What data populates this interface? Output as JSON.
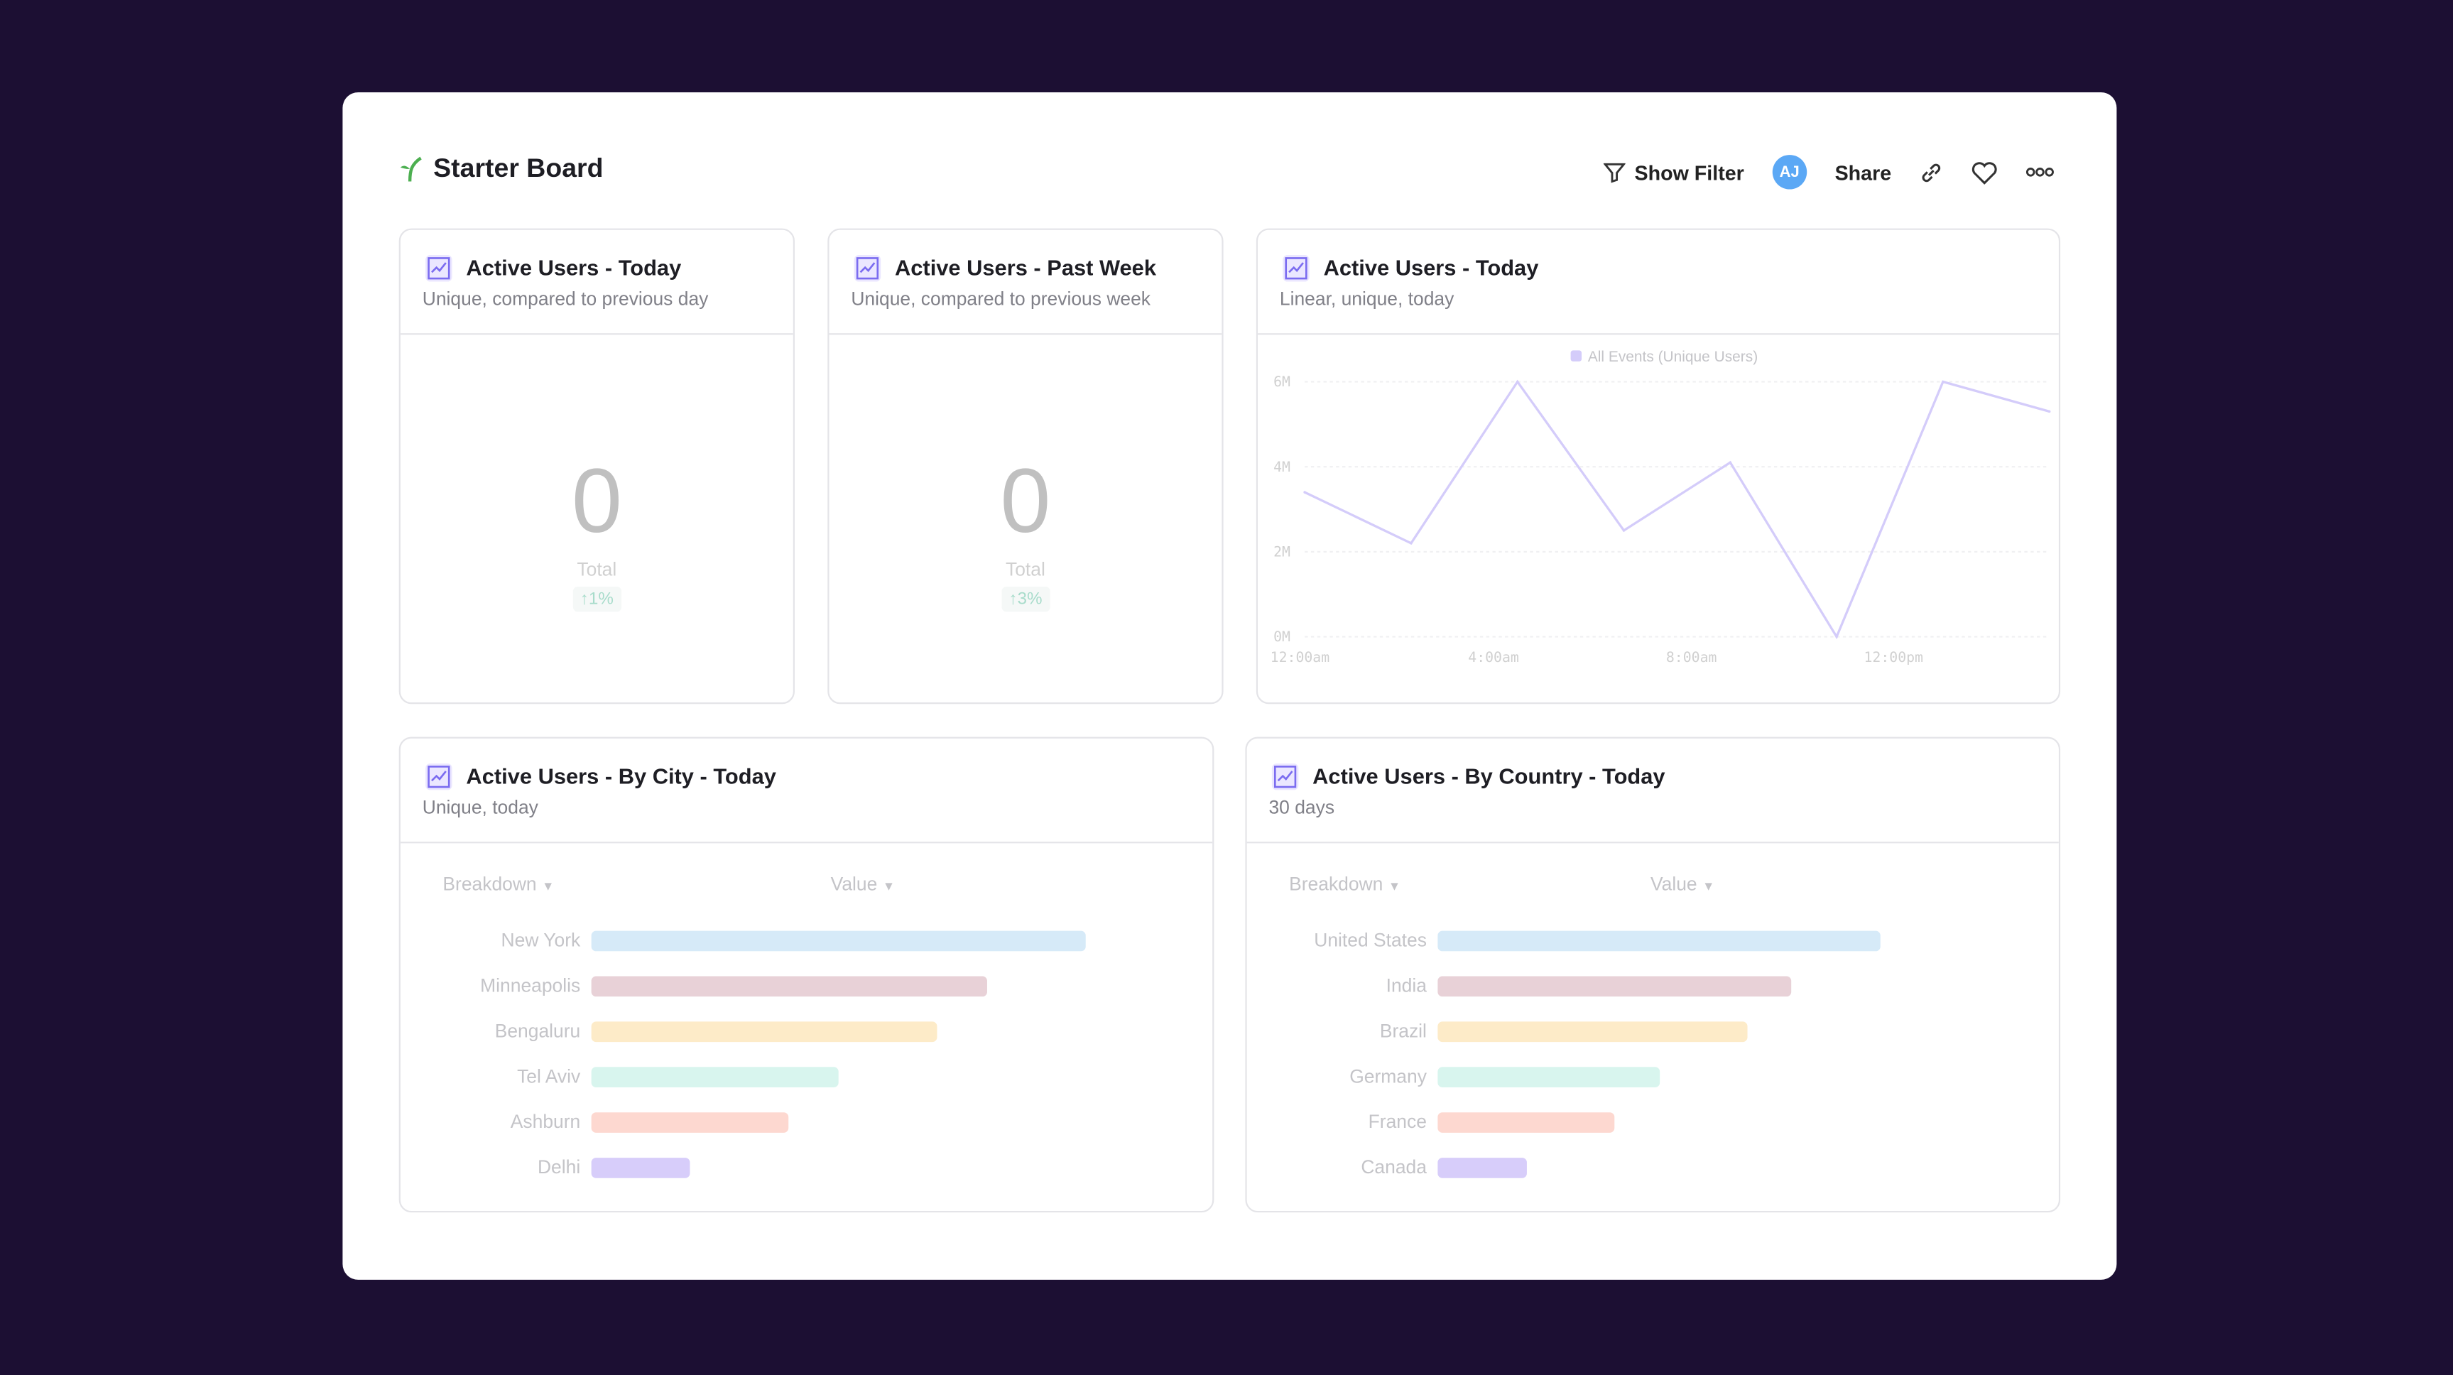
{
  "header": {
    "title": "Starter Board",
    "show_filter": "Show Filter",
    "avatar_initials": "AJ",
    "share": "Share"
  },
  "colors": {
    "background": "#1c0f33",
    "avatar": "#5ba8f5",
    "line": "#d4ccfa",
    "logo": "#4caf50"
  },
  "cards": [
    {
      "title": "Active Users - Today",
      "subtitle": "Unique, compared to previous day",
      "value": "0",
      "value_label": "Total",
      "delta": "↑1%"
    },
    {
      "title": "Active Users - Past Week",
      "subtitle": "Unique, compared to previous week",
      "value": "0",
      "value_label": "Total",
      "delta": "↑3%"
    },
    {
      "title": "Active Users - Today",
      "subtitle": "Linear, unique, today"
    },
    {
      "title": "Active Users - By City - Today",
      "subtitle": "Unique, today",
      "col_breakdown": "Breakdown",
      "col_value": "Value"
    },
    {
      "title": "Active Users - By Country - Today",
      "subtitle": "30 days",
      "col_breakdown": "Breakdown",
      "col_value": "Value"
    }
  ],
  "chart_data": [
    {
      "type": "line",
      "legend": "All Events (Unique Users)",
      "legend_position": "top",
      "x": [
        0,
        2,
        4,
        6,
        8,
        10,
        12,
        14
      ],
      "y": [
        3.4,
        2.2,
        6.0,
        2.5,
        4.1,
        0.0,
        6.0,
        5.3
      ],
      "x_ticks": [
        "12:00am",
        "4:00am",
        "8:00am",
        "12:00pm"
      ],
      "x_tick_values": [
        0,
        4,
        8,
        12
      ],
      "y_ticks": [
        "0M",
        "2M",
        "4M",
        "6M"
      ],
      "ylim": [
        0,
        6
      ],
      "grid": true
    },
    {
      "type": "bar",
      "orientation": "horizontal",
      "categories": [
        "New York",
        "Minneapolis",
        "Bengaluru",
        "Tel Aviv",
        "Ashburn",
        "Delhi"
      ],
      "values": [
        100,
        80,
        70,
        50,
        40,
        20
      ],
      "colors": [
        "#d6eaf8",
        "#e8d1d7",
        "#fdebc8",
        "#d8f5ee",
        "#fdd8d0",
        "#d7cdfa"
      ]
    },
    {
      "type": "bar",
      "orientation": "horizontal",
      "categories": [
        "United States",
        "India",
        "Brazil",
        "Germany",
        "France",
        "Canada"
      ],
      "values": [
        100,
        80,
        70,
        50,
        40,
        20
      ],
      "colors": [
        "#d6eaf8",
        "#e8d1d7",
        "#fdebc8",
        "#d8f5ee",
        "#fdd8d0",
        "#d7cdfa"
      ]
    }
  ]
}
